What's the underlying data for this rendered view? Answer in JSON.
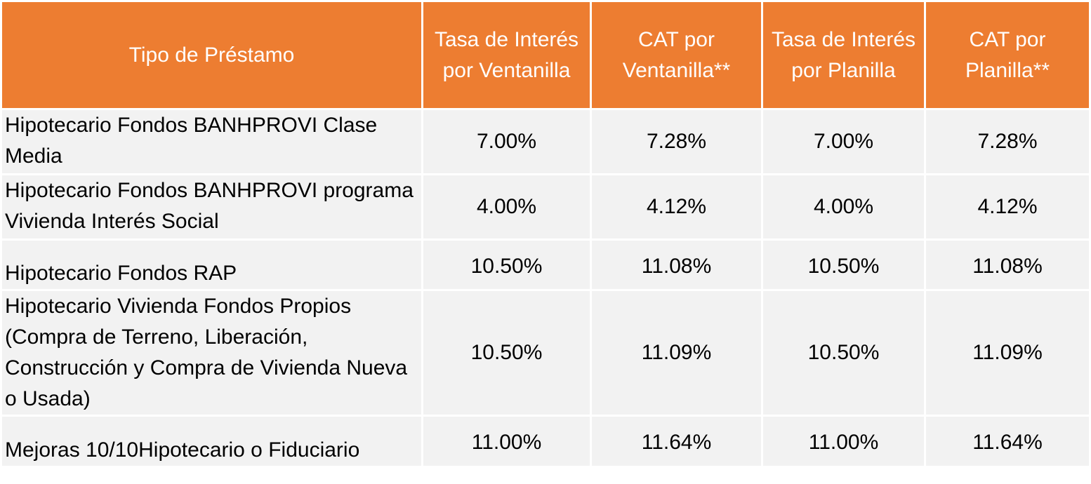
{
  "headers": {
    "tipo": "Tipo de Préstamo",
    "tasa_ventanilla": "Tasa de Interés por Ventanilla",
    "cat_ventanilla": "CAT por Ventanilla**",
    "tasa_planilla": "Tasa de Interés por Planilla",
    "cat_planilla": "CAT por Planilla**"
  },
  "rows": [
    {
      "tipo": "Hipotecario Fondos BANHPROVI Clase Media",
      "tasa_ventanilla": "7.00%",
      "cat_ventanilla": "7.28%",
      "tasa_planilla": "7.00%",
      "cat_planilla": "7.28%"
    },
    {
      "tipo": "Hipotecario Fondos BANHPROVI programa Vivienda Interés Social",
      "tasa_ventanilla": "4.00%",
      "cat_ventanilla": "4.12%",
      "tasa_planilla": "4.00%",
      "cat_planilla": "4.12%"
    },
    {
      "tipo": "Hipotecario Fondos RAP",
      "tasa_ventanilla": "10.50%",
      "cat_ventanilla": "11.08%",
      "tasa_planilla": "10.50%",
      "cat_planilla": "11.08%"
    },
    {
      "tipo": "Hipotecario Vivienda Fondos Propios (Compra de Terreno, Liberación, Construcción y Compra de Vivienda Nueva o Usada)",
      "tasa_ventanilla": "10.50%",
      "cat_ventanilla": "11.09%",
      "tasa_planilla": "10.50%",
      "cat_planilla": "11.09%"
    },
    {
      "tipo": "Mejoras 10/10Hipotecario o Fiduciario",
      "tasa_ventanilla": "11.00%",
      "cat_ventanilla": "11.64%",
      "tasa_planilla": "11.00%",
      "cat_planilla": "11.64%"
    }
  ],
  "colors": {
    "header_background": "#ed7d31",
    "header_text": "#ffffff",
    "row_background": "#f2f2f2",
    "row_text": "#000000"
  }
}
